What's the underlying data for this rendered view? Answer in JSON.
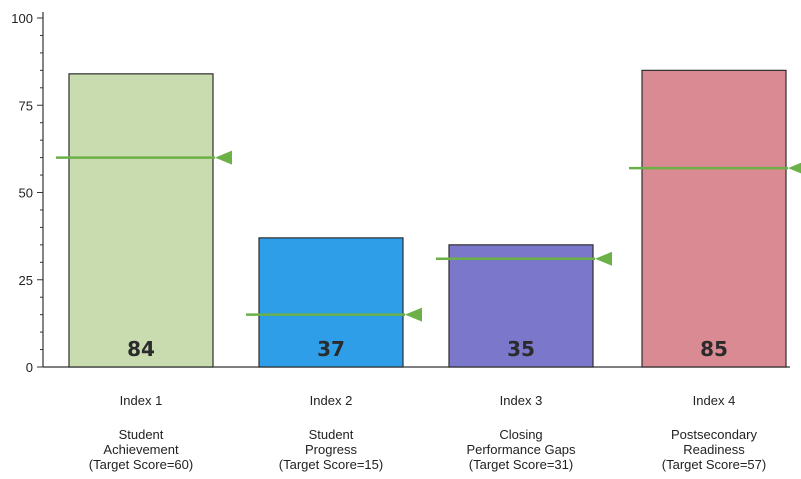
{
  "chart_data": {
    "type": "bar",
    "title": "",
    "xlabel": "",
    "ylabel": "",
    "ylim": [
      0,
      100
    ],
    "yticks": [
      "0",
      "25",
      "50",
      "75",
      "100"
    ],
    "grid": false,
    "categories": [
      "Index 1",
      "Index 2",
      "Index 3",
      "Index 4"
    ],
    "category_descriptions": [
      [
        "Student",
        "Achievement",
        "(Target Score=60)"
      ],
      [
        "Student",
        "Progress",
        "(Target Score=15)"
      ],
      [
        "Closing",
        "Performance Gaps",
        "(Target Score=31)"
      ],
      [
        "Postsecondary",
        "Readiness",
        "(Target Score=57)"
      ]
    ],
    "values": [
      84,
      37,
      35,
      85
    ],
    "value_labels": [
      "84",
      "37",
      "35",
      "85"
    ],
    "targets": [
      60,
      15,
      31,
      57
    ],
    "colors": [
      "#c8dcb0",
      "#2e9ee8",
      "#7b78cc",
      "#d98a92"
    ],
    "target_marker_color": "#6cb048"
  }
}
